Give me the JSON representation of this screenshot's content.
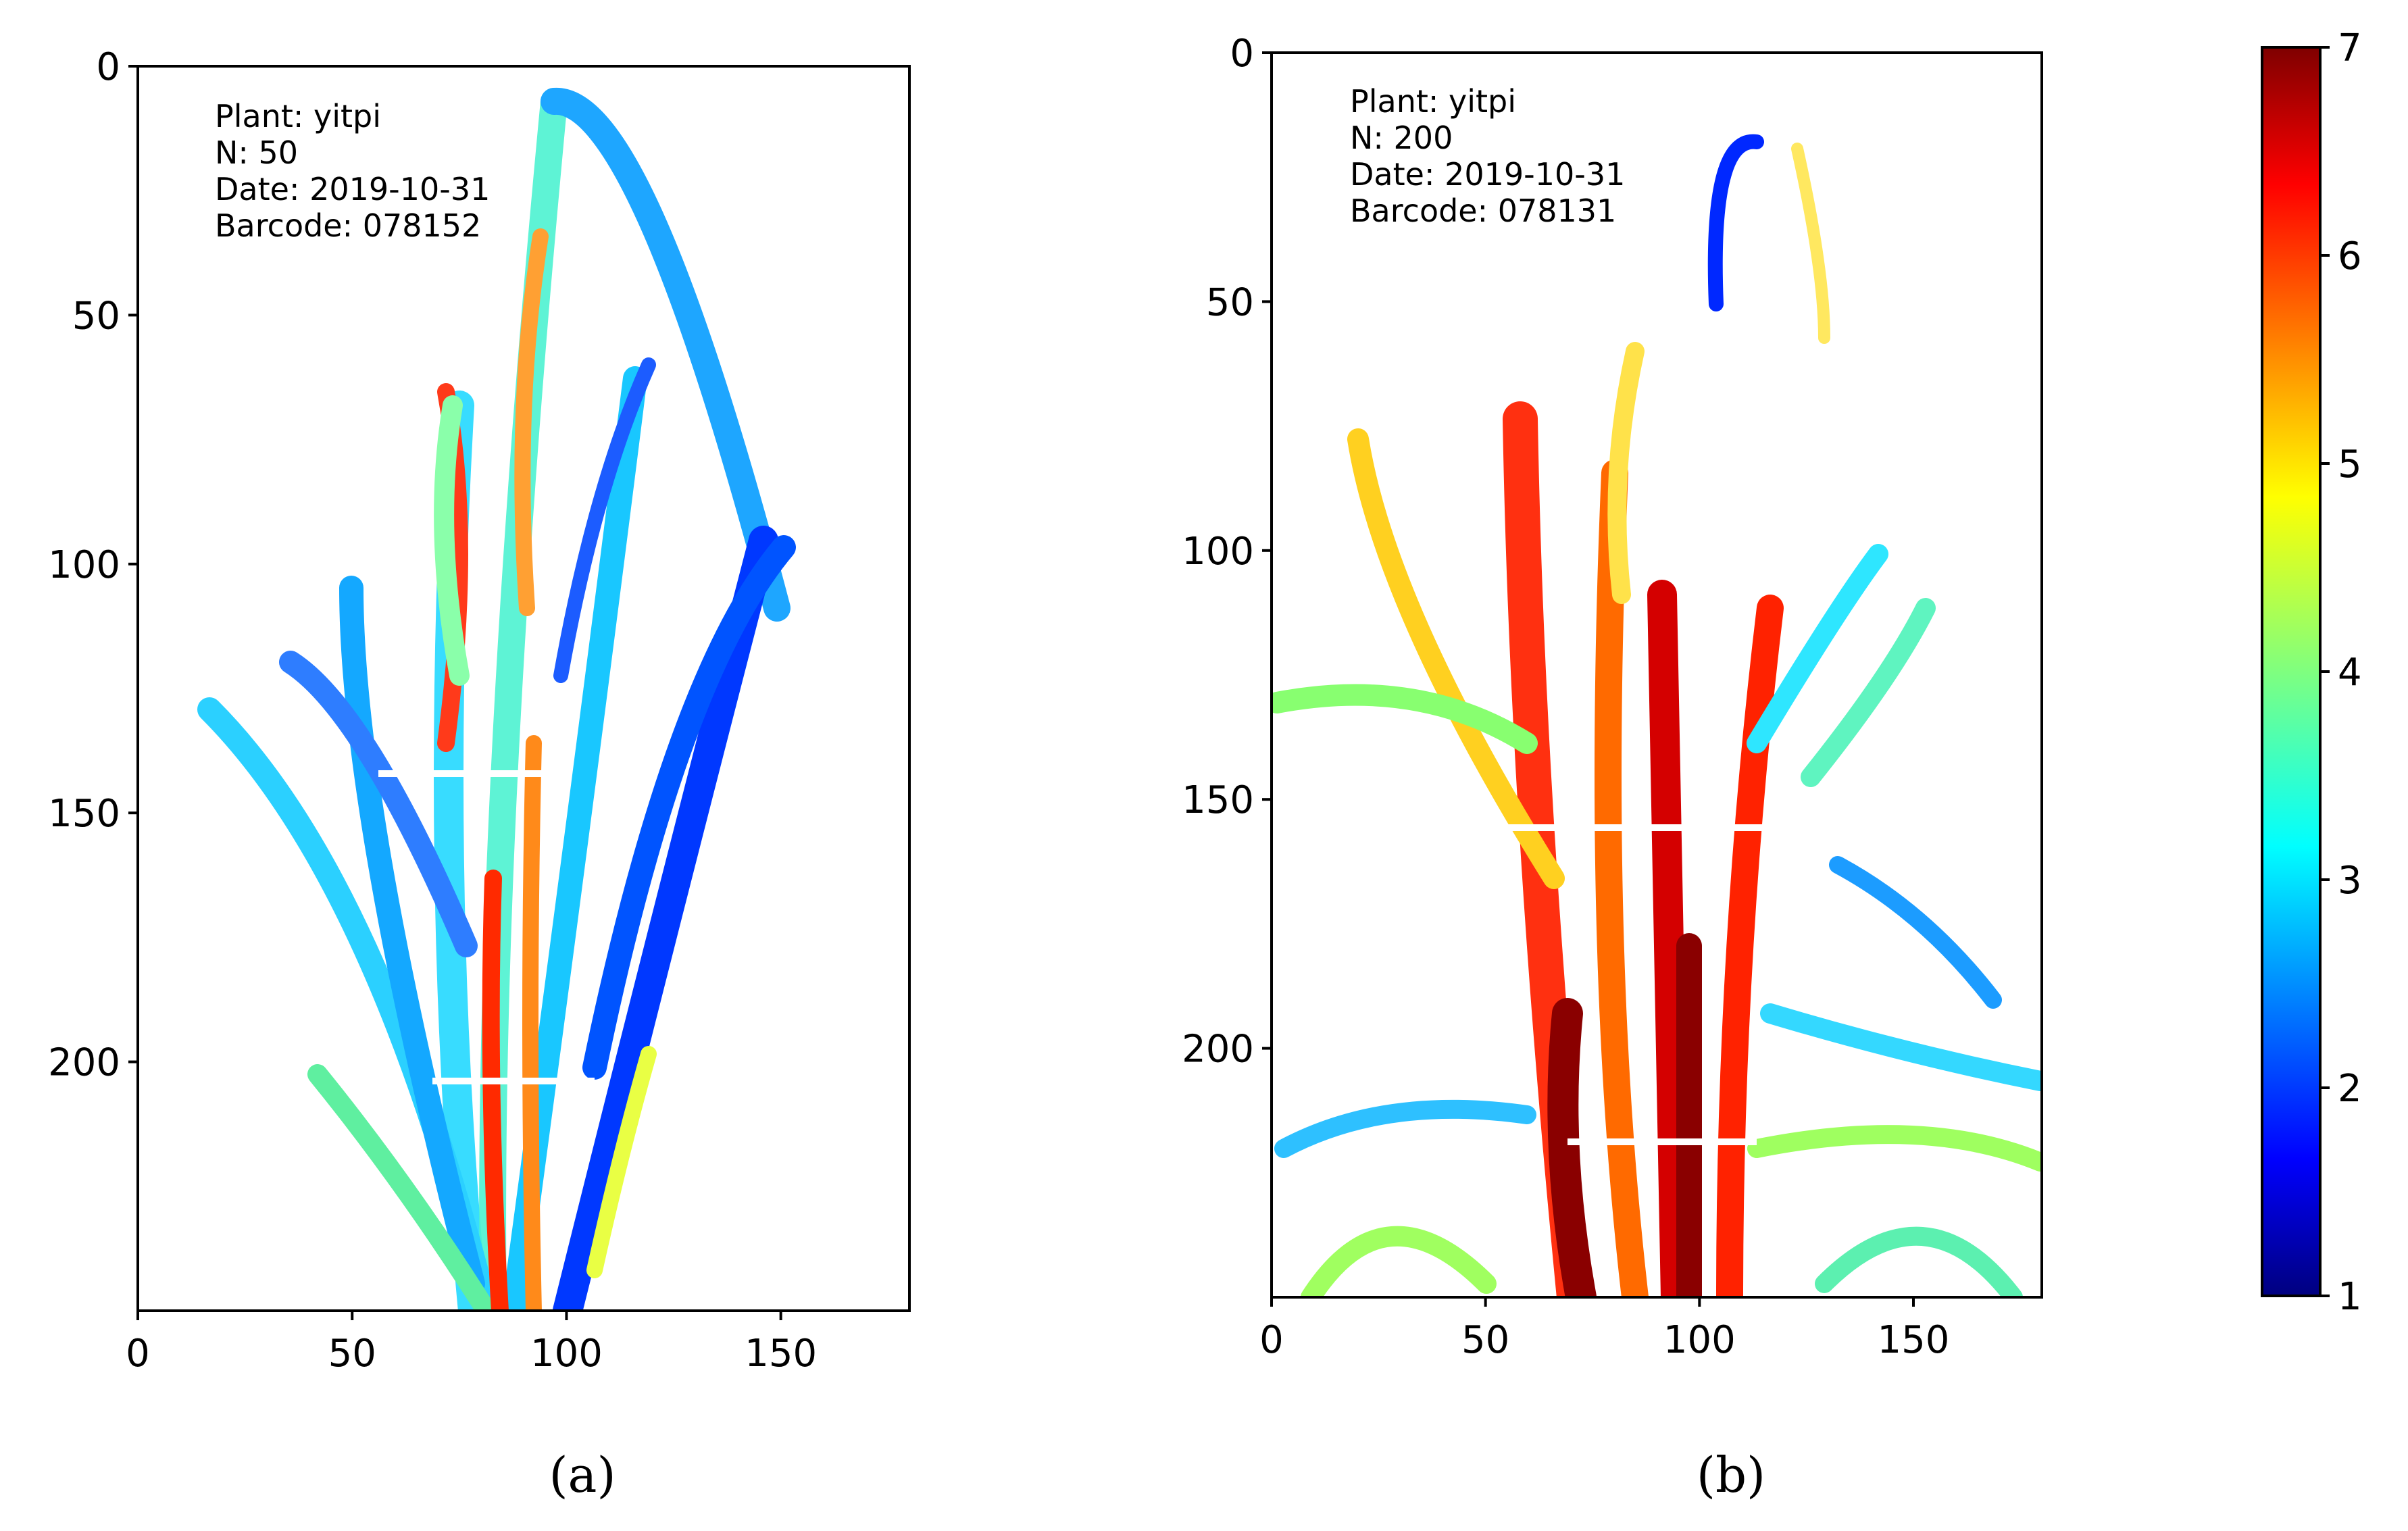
{
  "chart_data": [
    {
      "type": "heatmap",
      "caption": "(a)",
      "xlim": [
        0,
        180
      ],
      "ylim": [
        0,
        250
      ],
      "y_inverted": true,
      "xticks": [
        0,
        50,
        100,
        150
      ],
      "yticks": [
        0,
        50,
        100,
        150,
        200
      ],
      "annotation_lines": [
        "Plant: yitpi",
        "N: 50",
        "Date: 2019-10-31",
        "Barcode: 078152"
      ],
      "value_range": [
        1,
        7
      ]
    },
    {
      "type": "heatmap",
      "caption": "(b)",
      "xlim": [
        0,
        180
      ],
      "ylim": [
        0,
        250
      ],
      "y_inverted": true,
      "xticks": [
        0,
        50,
        100,
        150
      ],
      "yticks": [
        0,
        50,
        100,
        150,
        200
      ],
      "annotation_lines": [
        "Plant: yitpi",
        "N: 200",
        "Date: 2019-10-31",
        "Barcode: 078131"
      ],
      "value_range": [
        1,
        7
      ]
    }
  ],
  "colorbar": {
    "colormap": "jet",
    "range": [
      1,
      7
    ],
    "ticks": [
      1,
      2,
      3,
      4,
      5,
      6,
      7
    ]
  }
}
